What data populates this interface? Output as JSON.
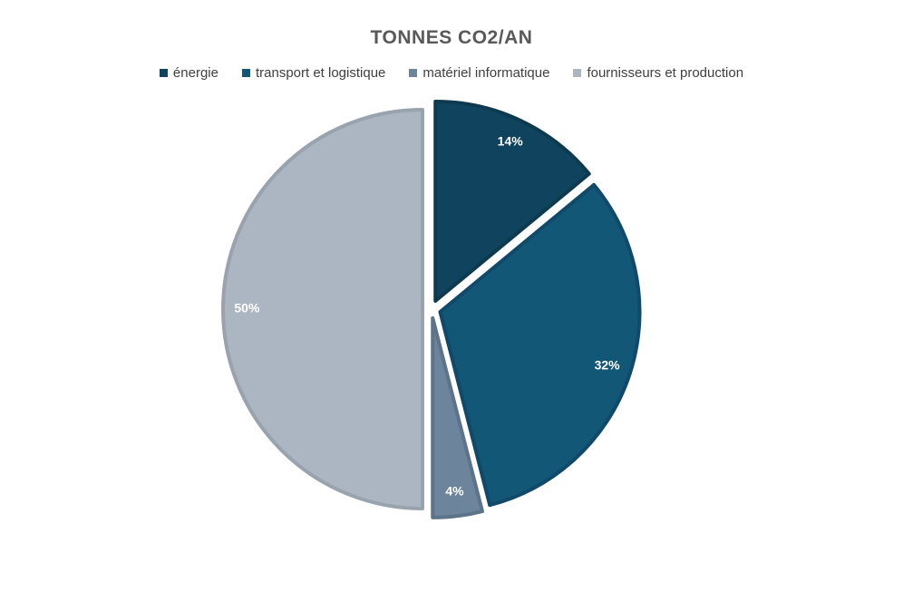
{
  "chart_data": {
    "type": "pie",
    "title": "TONNES CO2/AN",
    "legend_position": "top",
    "categories": [
      "énergie",
      "transport et logistique",
      "matériel informatique",
      "fournisseurs et production"
    ],
    "values": [
      14,
      32,
      4,
      50
    ],
    "labels": [
      "14%",
      "32%",
      "4%",
      "50%"
    ],
    "colors": [
      "#10445e",
      "#135776",
      "#6c849c",
      "#acb6c2"
    ],
    "edge_colors": [
      "#0e3a50",
      "#10496a",
      "#5d7389",
      "#99a3ae"
    ]
  }
}
